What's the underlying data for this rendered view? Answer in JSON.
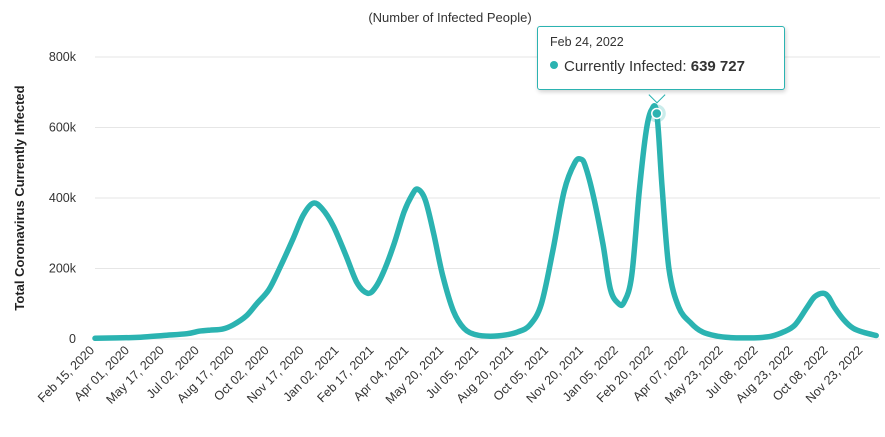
{
  "chart_data": {
    "type": "line",
    "subtitle": "(Number of Infected People)",
    "ylabel": "Total Coronavirus Currently Infected",
    "xlabel": "",
    "ylim": [
      0,
      800000
    ],
    "y_ticks": [
      0,
      200000,
      400000,
      600000,
      800000
    ],
    "y_tick_labels": [
      "0",
      "200k",
      "400k",
      "600k",
      "800k"
    ],
    "x_ticks": [
      "2020-02-15",
      "2020-04-01",
      "2020-05-17",
      "2020-07-02",
      "2020-08-17",
      "2020-10-02",
      "2020-11-17",
      "2021-01-02",
      "2021-02-17",
      "2021-04-04",
      "2021-05-20",
      "2021-07-05",
      "2021-08-20",
      "2021-10-05",
      "2021-11-20",
      "2022-01-05",
      "2022-02-20",
      "2022-04-07",
      "2022-05-23",
      "2022-07-08",
      "2022-08-23",
      "2022-10-08",
      "2022-11-23"
    ],
    "x_tick_labels": [
      "Feb 15, 2020",
      "Apr 01, 2020",
      "May 17, 2020",
      "Jul 02, 2020",
      "Aug 17, 2020",
      "Oct 02, 2020",
      "Nov 17, 2020",
      "Jan 02, 2021",
      "Feb 17, 2021",
      "Apr 04, 2021",
      "May 20, 2021",
      "Jul 05, 2021",
      "Aug 20, 2021",
      "Oct 05, 2021",
      "Nov 20, 2021",
      "Jan 05, 2022",
      "Feb 20, 2022",
      "Apr 07, 2022",
      "May 23, 2022",
      "Jul 08, 2022",
      "Aug 23, 2022",
      "Oct 08, 2022",
      "Nov 23, 2022"
    ],
    "grid": true,
    "legend": "none",
    "series": [
      {
        "color": "#2bb3b1",
        "x": [
          "2020-02-15",
          "2020-03-15",
          "2020-04-15",
          "2020-05-15",
          "2020-06-15",
          "2020-07-01",
          "2020-07-15",
          "2020-08-01",
          "2020-08-15",
          "2020-09-01",
          "2020-09-15",
          "2020-10-01",
          "2020-10-15",
          "2020-11-01",
          "2020-11-15",
          "2020-11-28",
          "2020-12-10",
          "2020-12-25",
          "2021-01-10",
          "2021-01-25",
          "2021-02-08",
          "2021-02-18",
          "2021-03-01",
          "2021-03-15",
          "2021-03-28",
          "2021-04-08",
          "2021-04-15",
          "2021-04-25",
          "2021-05-06",
          "2021-05-18",
          "2021-06-01",
          "2021-06-15",
          "2021-07-01",
          "2021-07-20",
          "2021-08-10",
          "2021-08-25",
          "2021-09-10",
          "2021-09-25",
          "2021-10-10",
          "2021-10-25",
          "2021-11-08",
          "2021-11-16",
          "2021-11-22",
          "2021-12-03",
          "2021-12-15",
          "2021-12-25",
          "2022-01-05",
          "2022-01-12",
          "2022-01-22",
          "2022-02-01",
          "2022-02-10",
          "2022-02-17",
          "2022-02-24",
          "2022-03-03",
          "2022-03-12",
          "2022-03-25",
          "2022-04-10",
          "2022-04-25",
          "2022-05-15",
          "2022-06-01",
          "2022-06-20",
          "2022-07-10",
          "2022-07-25",
          "2022-08-10",
          "2022-08-25",
          "2022-09-10",
          "2022-09-20",
          "2022-10-01",
          "2022-10-08",
          "2022-10-16",
          "2022-10-28",
          "2022-11-10",
          "2022-11-25",
          "2022-12-10"
        ],
        "values": [
          2000,
          3000,
          5000,
          10000,
          15000,
          22000,
          25000,
          28000,
          40000,
          65000,
          100000,
          140000,
          200000,
          280000,
          350000,
          385000,
          370000,
          320000,
          240000,
          160000,
          130000,
          145000,
          190000,
          270000,
          360000,
          410000,
          425000,
          395000,
          300000,
          180000,
          80000,
          30000,
          12000,
          8000,
          12000,
          20000,
          40000,
          100000,
          250000,
          420000,
          500000,
          510000,
          490000,
          400000,
          270000,
          140000,
          100000,
          105000,
          180000,
          420000,
          590000,
          650000,
          639727,
          430000,
          200000,
          90000,
          45000,
          20000,
          8000,
          4000,
          3000,
          4000,
          8000,
          20000,
          40000,
          90000,
          120000,
          130000,
          120000,
          90000,
          55000,
          30000,
          18000,
          10000
        ]
      }
    ],
    "tooltip": {
      "date": "Feb 24, 2022",
      "label": "Currently Infected:",
      "value": "639 727",
      "x": "2022-02-24",
      "y": 639727
    }
  }
}
